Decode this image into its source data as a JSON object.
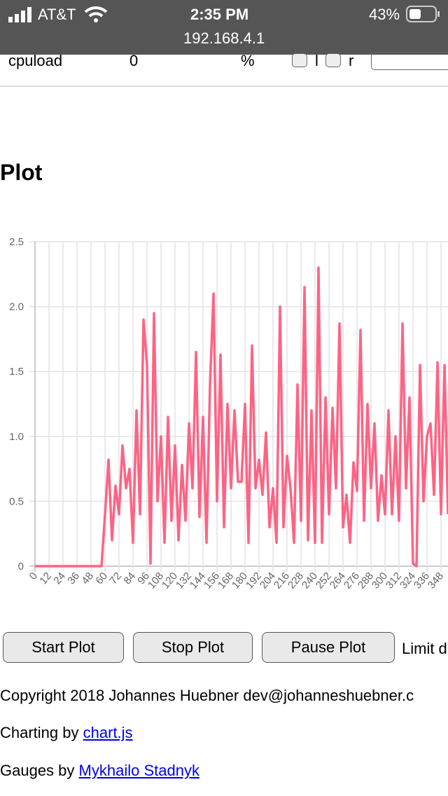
{
  "status_bar": {
    "carrier": "AT&T",
    "time": "2:35 PM",
    "url": "192.168.4.1",
    "battery": "43%"
  },
  "table_row": {
    "name": "cpuload",
    "value": 0,
    "unit": "%",
    "check_l": "l",
    "check_r": "r"
  },
  "heading": "Plot",
  "chart_data": {
    "type": "line",
    "color": "#ff6384",
    "grid": true,
    "x": [
      0,
      3,
      6,
      9,
      12,
      15,
      18,
      21,
      24,
      27,
      30,
      33,
      36,
      39,
      42,
      45,
      48,
      51,
      54,
      57,
      60,
      63,
      66,
      69,
      72,
      75,
      78,
      81,
      84,
      87,
      90,
      93,
      96,
      99,
      102,
      105,
      108,
      111,
      114,
      117,
      120,
      123,
      126,
      129,
      132,
      135,
      138,
      141,
      144,
      147,
      150,
      153,
      156,
      159,
      162,
      165,
      168,
      171,
      174,
      177,
      180,
      183,
      186,
      189,
      192,
      195,
      198,
      201,
      204,
      207,
      210,
      213,
      216,
      219,
      222,
      225,
      228,
      231,
      234,
      237,
      240,
      243,
      246,
      249,
      252,
      255,
      258,
      261,
      264,
      267,
      270,
      273,
      276,
      279,
      282,
      285,
      288,
      291,
      294,
      297,
      300,
      303,
      306,
      309,
      312,
      315,
      318,
      321,
      324,
      327,
      330,
      333,
      336,
      339,
      342,
      345,
      348,
      351,
      354
    ],
    "values": [
      0,
      0,
      0,
      0,
      0,
      0,
      0,
      0,
      0,
      0,
      0,
      0,
      0,
      0,
      0,
      0,
      0,
      0,
      0,
      0,
      0.4,
      0.82,
      0.2,
      0.62,
      0.4,
      0.93,
      0.6,
      0.75,
      0.18,
      1.2,
      0.4,
      1.9,
      1.55,
      0.02,
      1.95,
      0.5,
      1.0,
      0.18,
      1.15,
      0.35,
      0.93,
      0.2,
      0.78,
      0.35,
      1.1,
      0.6,
      1.65,
      0.38,
      1.15,
      0.18,
      1.4,
      2.1,
      0.5,
      1.63,
      0.3,
      1.25,
      0.6,
      1.2,
      0.65,
      0.65,
      1.25,
      0.18,
      1.7,
      0.6,
      0.82,
      0.55,
      1.03,
      0.3,
      0.6,
      0.18,
      2.0,
      0.3,
      0.85,
      0.6,
      0.18,
      1.4,
      0.35,
      2.15,
      0.2,
      1.2,
      0.18,
      2.3,
      0.18,
      1.3,
      0.4,
      1.22,
      0.6,
      1.87,
      0.3,
      0.55,
      0.18,
      0.8,
      0.58,
      1.82,
      0.35,
      1.25,
      0.6,
      1.1,
      0.35,
      0.7,
      0.4,
      1.2,
      0.4,
      1.0,
      0.35,
      1.87,
      0.6,
      1.3,
      0.02,
      0.0,
      1.55,
      0.5,
      1.0,
      1.1,
      0.55,
      1.57,
      0.4,
      1.55,
      0.4
    ],
    "xlim": [
      0,
      354
    ],
    "ylim": [
      0,
      2.5
    ],
    "xticks": [
      0,
      12,
      24,
      36,
      48,
      60,
      72,
      84,
      96,
      108,
      120,
      132,
      144,
      156,
      168,
      180,
      192,
      204,
      216,
      228,
      240,
      252,
      264,
      276,
      288,
      300,
      312,
      324,
      336,
      348
    ],
    "yticks": [
      0,
      0.5,
      {
        "value": 1,
        "label": "1.0"
      },
      1.5,
      {
        "value": 2,
        "label": "2.0"
      },
      2.5
    ]
  },
  "buttons": [
    "Start Plot",
    "Stop Plot",
    "Pause Plot"
  ],
  "limit_label": "Limit d",
  "footer": {
    "copyright": "Copyright 2018 Johannes Huebner dev@johanneshuebner.c",
    "charting_prefix": "Charting by",
    "charting_link": "chart.js",
    "gauges_prefix": "Gauges by",
    "gauges_link": "Mykhailo Stadnyk"
  }
}
